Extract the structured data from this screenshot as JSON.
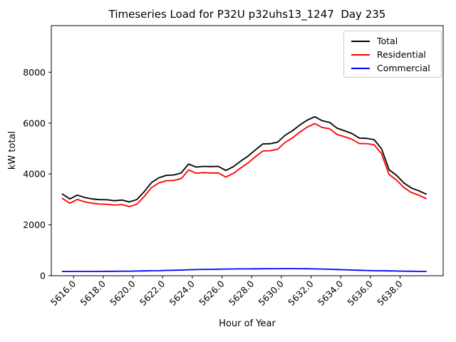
{
  "title": "Timeseries Load for P32U p32uhs13_1247  Day 235",
  "chart_data": {
    "type": "line",
    "title": "Timeseries Load for P32U p32uhs13_1247  Day 235",
    "xlabel": "Hour of Year",
    "ylabel": "kW total",
    "xlim": [
      5614.5,
      5640.9
    ],
    "ylim": [
      0,
      9830
    ],
    "grid": false,
    "background_color": "#ffffff",
    "axes_edge_color": "#000000",
    "xticks": {
      "values": [
        5616,
        5618,
        5620,
        5622,
        5624,
        5626,
        5628,
        5630,
        5632,
        5634,
        5636,
        5638
      ],
      "labels": [
        "5616.0",
        "5618.0",
        "5620.0",
        "5622.0",
        "5624.0",
        "5626.0",
        "5628.0",
        "5630.0",
        "5632.0",
        "5634.0",
        "5636.0",
        "5638.0"
      ],
      "rotation_deg": 45
    },
    "yticks": {
      "values": [
        0,
        2000,
        4000,
        6000,
        8000
      ],
      "labels": [
        "0",
        "2000",
        "4000",
        "6000",
        "8000"
      ]
    },
    "legend": {
      "position": "upper right",
      "entries": [
        {
          "label": "Total",
          "color": "#000000"
        },
        {
          "label": "Residential",
          "color": "#ff0000"
        },
        {
          "label": "Commercial",
          "color": "#0000ff"
        }
      ]
    },
    "x": [
      5615.25,
      5615.75,
      5616.25,
      5616.75,
      5617.25,
      5617.75,
      5618.25,
      5618.75,
      5619.25,
      5619.75,
      5620.25,
      5620.75,
      5621.25,
      5621.75,
      5622.25,
      5622.75,
      5623.25,
      5623.75,
      5624.25,
      5624.75,
      5625.25,
      5625.75,
      5626.25,
      5626.75,
      5627.25,
      5627.75,
      5628.25,
      5628.75,
      5629.25,
      5629.75,
      5630.25,
      5630.75,
      5631.25,
      5631.75,
      5632.25,
      5632.75,
      5633.25,
      5633.75,
      5634.25,
      5634.75,
      5635.25,
      5635.75,
      5636.25,
      5636.75,
      5637.25,
      5637.75,
      5638.25,
      5638.75,
      5639.25,
      5639.75
    ],
    "series": [
      {
        "name": "Total",
        "color": "#000000",
        "values": [
          3210,
          3020,
          3170,
          3075,
          3020,
          2990,
          2985,
          2950,
          2975,
          2900,
          2990,
          3300,
          3660,
          3850,
          3945,
          3960,
          4040,
          4390,
          4270,
          4300,
          4290,
          4300,
          4140,
          4280,
          4500,
          4700,
          4950,
          5180,
          5190,
          5250,
          5520,
          5700,
          5930,
          6120,
          6250,
          6090,
          6030,
          5800,
          5700,
          5590,
          5410,
          5400,
          5350,
          4990,
          4170,
          3950,
          3650,
          3450,
          3340,
          3210
        ]
      },
      {
        "name": "Residential",
        "color": "#ff0000",
        "values": [
          3040,
          2852,
          3000,
          2905,
          2848,
          2818,
          2810,
          2775,
          2797,
          2720,
          2805,
          3110,
          3465,
          3650,
          3735,
          3745,
          3815,
          4155,
          4030,
          4052,
          4038,
          4042,
          3878,
          4015,
          4232,
          4430,
          4678,
          4905,
          4914,
          4972,
          5240,
          5420,
          5652,
          5845,
          5980,
          5828,
          5775,
          5555,
          5465,
          5365,
          5195,
          5192,
          5150,
          4795,
          3980,
          3765,
          3470,
          3274,
          3168,
          3040
        ]
      },
      {
        "name": "Commercial",
        "color": "#0000ff",
        "values": [
          170,
          168,
          170,
          170,
          172,
          172,
          175,
          175,
          178,
          180,
          185,
          190,
          195,
          200,
          210,
          215,
          225,
          235,
          240,
          248,
          252,
          258,
          262,
          265,
          268,
          270,
          272,
          275,
          276,
          278,
          280,
          280,
          278,
          275,
          270,
          262,
          255,
          245,
          235,
          225,
          215,
          208,
          200,
          195,
          190,
          185,
          180,
          176,
          172,
          170
        ]
      }
    ]
  }
}
